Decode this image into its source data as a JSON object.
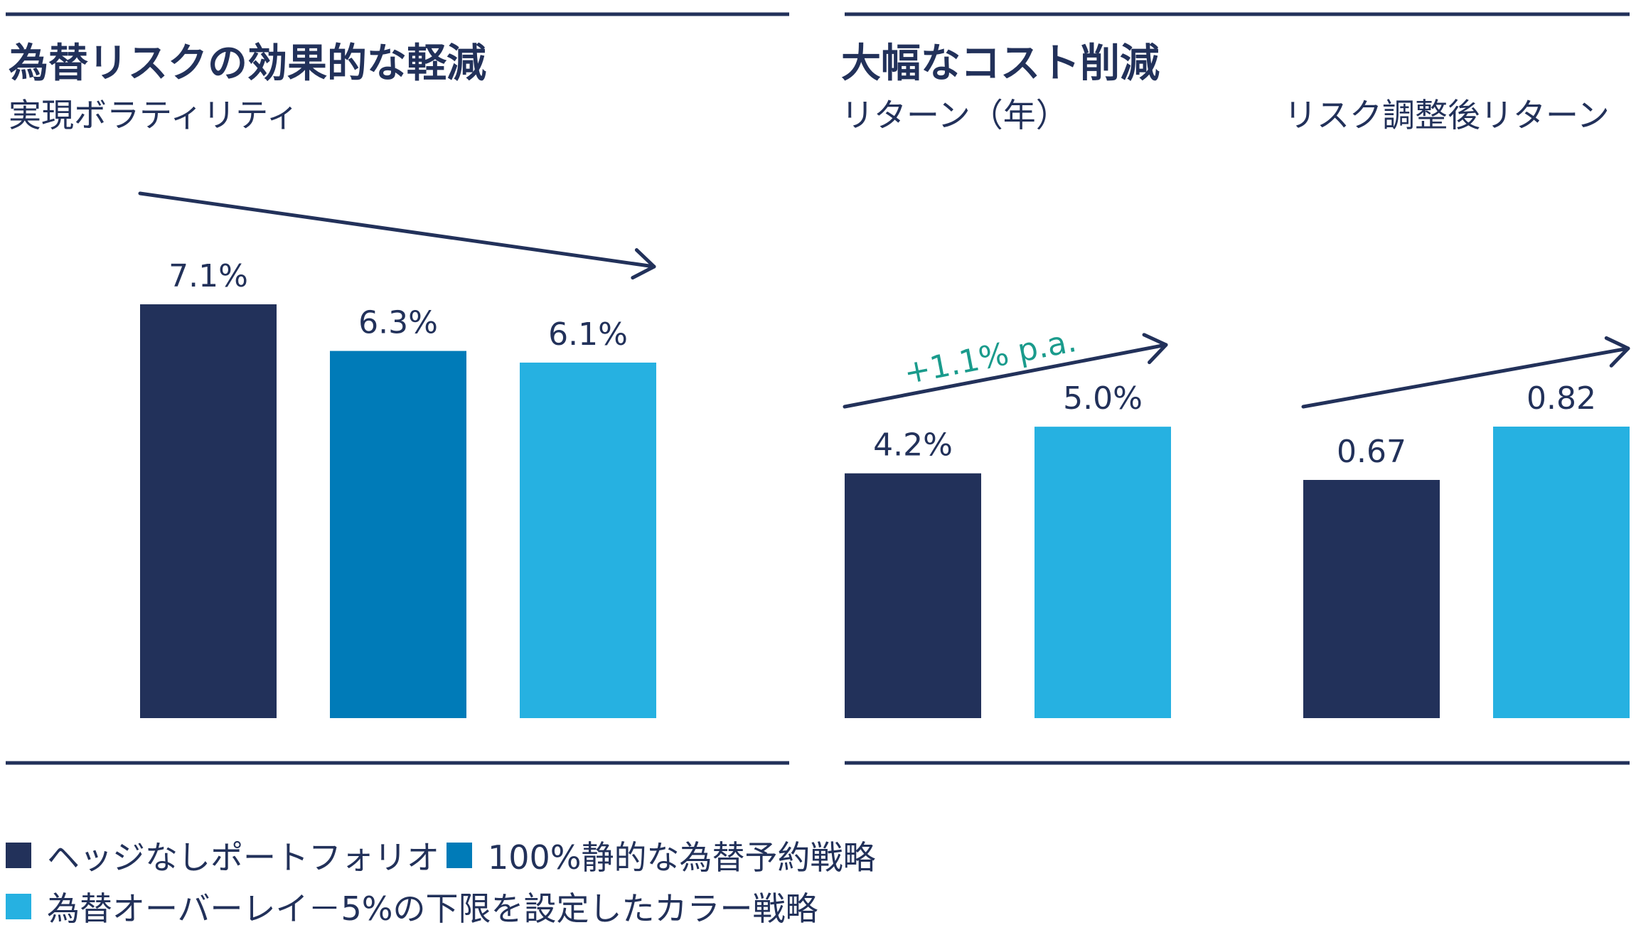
{
  "colors": {
    "navy": "#22315a",
    "mid_blue": "#007bb8",
    "light_blue": "#26b1e1",
    "annotation_green": "#1a9b8c"
  },
  "panel_left": {
    "title": "為替リスクの効果的な軽減",
    "subtitle": "実現ボラティリティ"
  },
  "panel_right": {
    "title": "大幅なコスト削減",
    "subtitle_return": "リターン（年）",
    "subtitle_risk_adjusted": "リスク調整後リターン",
    "annotation": "+1.1% p.a."
  },
  "legend": [
    {
      "label": "ヘッジなしポートフォリオ",
      "color": "#22315a"
    },
    {
      "label": "100%静的な為替予約戦略",
      "color": "#007bb8"
    },
    {
      "label": "為替オーバーレイ－5%の下限を設定したカラー戦略",
      "color": "#26b1e1"
    }
  ],
  "chart_data": [
    {
      "type": "bar",
      "title": "実現ボラティリティ",
      "categories": [
        "ヘッジなしポートフォリオ",
        "100%静的な為替予約戦略",
        "為替オーバーレイ－5%の下限を設定したカラー戦略"
      ],
      "values": [
        7.1,
        6.3,
        6.1
      ],
      "labels": [
        "7.1%",
        "6.3%",
        "6.1%"
      ],
      "colors": [
        "#22315a",
        "#007bb8",
        "#26b1e1"
      ],
      "ylim": [
        0,
        7.1
      ],
      "trend": "down"
    },
    {
      "type": "bar",
      "title": "リターン（年）",
      "categories": [
        "ヘッジなしポートフォリオ",
        "為替オーバーレイ－5%の下限を設定したカラー戦略"
      ],
      "values": [
        4.2,
        5.0
      ],
      "labels": [
        "4.2%",
        "5.0%"
      ],
      "colors": [
        "#22315a",
        "#26b1e1"
      ],
      "ylim": [
        0,
        7.1
      ],
      "trend": "up"
    },
    {
      "type": "bar",
      "title": "リスク調整後リターン",
      "categories": [
        "ヘッジなしポートフォリオ",
        "為替オーバーレイ－5%の下限を設定したカラー戦略"
      ],
      "values": [
        0.67,
        0.82
      ],
      "labels": [
        "0.67",
        "0.82"
      ],
      "colors": [
        "#22315a",
        "#26b1e1"
      ],
      "ylim": [
        0,
        1.164
      ],
      "trend": "up"
    }
  ]
}
